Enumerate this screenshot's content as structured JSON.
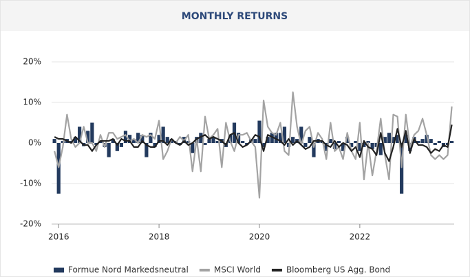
{
  "chart_data": {
    "type": "mixed",
    "title": "MONTHLY RETURNS",
    "x": [
      2015.917,
      2016,
      2016.083,
      2016.167,
      2016.25,
      2016.333,
      2016.417,
      2016.5,
      2016.583,
      2016.667,
      2016.75,
      2016.833,
      2016.917,
      2017,
      2017.083,
      2017.167,
      2017.25,
      2017.333,
      2017.417,
      2017.5,
      2017.583,
      2017.667,
      2017.75,
      2017.833,
      2017.917,
      2018,
      2018.083,
      2018.167,
      2018.25,
      2018.333,
      2018.417,
      2018.5,
      2018.583,
      2018.667,
      2018.75,
      2018.833,
      2018.917,
      2019,
      2019.083,
      2019.167,
      2019.25,
      2019.333,
      2019.417,
      2019.5,
      2019.583,
      2019.667,
      2019.75,
      2019.833,
      2019.917,
      2020,
      2020.083,
      2020.167,
      2020.25,
      2020.333,
      2020.417,
      2020.5,
      2020.583,
      2020.667,
      2020.75,
      2020.833,
      2020.917,
      2021,
      2021.083,
      2021.167,
      2021.25,
      2021.333,
      2021.417,
      2021.5,
      2021.583,
      2021.667,
      2021.75,
      2021.833,
      2021.917,
      2022,
      2022.083,
      2022.167,
      2022.25,
      2022.333,
      2022.417,
      2022.5,
      2022.583,
      2022.667,
      2022.75,
      2022.833,
      2022.917,
      2023,
      2023.083,
      2023.167,
      2023.25,
      2023.333,
      2023.417,
      2023.5,
      2023.583,
      2023.667,
      2023.75,
      2023.833
    ],
    "series": [
      {
        "name": "Formue Nord Markedsneutral",
        "type": "bar",
        "color": "#233a5e",
        "values": [
          1,
          -12.5,
          0.5,
          1,
          0.5,
          1.5,
          4,
          -0.8,
          3,
          5,
          -0.5,
          0.5,
          -1,
          -3.5,
          1,
          -2,
          -1,
          3,
          2,
          1,
          2.5,
          2,
          -3.5,
          2.5,
          -1,
          2,
          4,
          1.5,
          1,
          0.5,
          -0.5,
          1.5,
          0.5,
          -2.5,
          1.5,
          2.5,
          -0.5,
          1,
          1.5,
          0.5,
          1,
          -1,
          2,
          5,
          2.5,
          0.5,
          -0.5,
          1,
          1,
          5.5,
          -1,
          1.5,
          2.5,
          2.5,
          2.5,
          4,
          -1,
          1.5,
          1,
          4,
          -1,
          1.5,
          -3.5,
          1,
          0.5,
          -2,
          1,
          -1.5,
          0.5,
          -2,
          1.5,
          -1,
          0.5,
          -2,
          -1,
          0.5,
          -1.5,
          -1,
          -3,
          1.5,
          2.5,
          1.5,
          2,
          -12.5,
          2,
          -2,
          1.5,
          0.5,
          1,
          2,
          1,
          -0.5,
          0.5,
          -1,
          -0.5,
          0.5
        ]
      },
      {
        "name": "MSCI World",
        "type": "line",
        "color": "#a3a3a3",
        "values": [
          -2,
          -6,
          -1,
          7,
          1,
          -1,
          0,
          4,
          0,
          0,
          -2,
          2,
          -1,
          2.5,
          2.5,
          1,
          1.5,
          2,
          0.5,
          1,
          0,
          2,
          1.5,
          2,
          1,
          5.5,
          -4,
          -2,
          1,
          0,
          1.5,
          0.5,
          2,
          -7,
          1,
          -7,
          6.5,
          1,
          2,
          3.5,
          -6,
          5,
          0.5,
          -2,
          2,
          2,
          2.5,
          0.5,
          -1,
          -13.5,
          10.5,
          4,
          2.5,
          2,
          5,
          -2,
          -3,
          12.5,
          4,
          -0.5,
          3,
          4,
          -1,
          2.5,
          1,
          -4,
          5,
          -2,
          -1,
          -4,
          2.5,
          -2,
          -4,
          5,
          -9,
          0,
          -8,
          -2,
          6,
          -3,
          -9,
          7,
          6.5,
          -6,
          7,
          -1,
          2,
          3,
          6,
          2,
          -3,
          -4,
          -3,
          -4,
          -3,
          9
        ]
      },
      {
        "name": "Bloomberg US Agg. Bond",
        "type": "line",
        "color": "#222222",
        "values": [
          1.5,
          1,
          1,
          0.5,
          0,
          1.5,
          0.5,
          -0.5,
          -0.5,
          -2,
          -0.5,
          0.5,
          0.5,
          0.5,
          1,
          -0.5,
          1,
          0.5,
          0.5,
          -1,
          -1,
          0.5,
          -0.5,
          -1,
          -1,
          0.5,
          0.5,
          -0.5,
          1,
          0,
          -0.5,
          0.5,
          -0.5,
          0,
          1,
          1.5,
          2,
          1,
          1.5,
          1,
          0.5,
          -0.5,
          2,
          2.5,
          0,
          -1,
          -0.5,
          0.5,
          2,
          1.5,
          -2,
          2,
          1.5,
          1,
          0.5,
          -0.5,
          1,
          -0.5,
          0.5,
          -0.5,
          -1.5,
          -1,
          0.5,
          0.5,
          0.5,
          -0.5,
          -1,
          0.5,
          -1,
          0,
          -0.5,
          -2,
          -1,
          -3.5,
          0.5,
          -1,
          -1.5,
          -3,
          2.5,
          -2.5,
          -4.5,
          -1,
          3.5,
          -1,
          3,
          -2.5,
          1,
          -0.5,
          -0.5,
          -1,
          -2.5,
          -1.5,
          -2,
          -0.5,
          -1,
          4.5
        ]
      }
    ],
    "xlim": [
      2015.86,
      2023.88
    ],
    "xticks": [
      2016,
      2018,
      2020,
      2022
    ],
    "ylim": [
      -20,
      20
    ],
    "yticks": [
      {
        "value": -20,
        "label": "-20%"
      },
      {
        "value": -10,
        "label": "-10%"
      },
      {
        "value": 0,
        "label": "0%"
      },
      {
        "value": 10,
        "label": "10%"
      },
      {
        "value": 20,
        "label": "20%"
      }
    ],
    "grid": true
  }
}
